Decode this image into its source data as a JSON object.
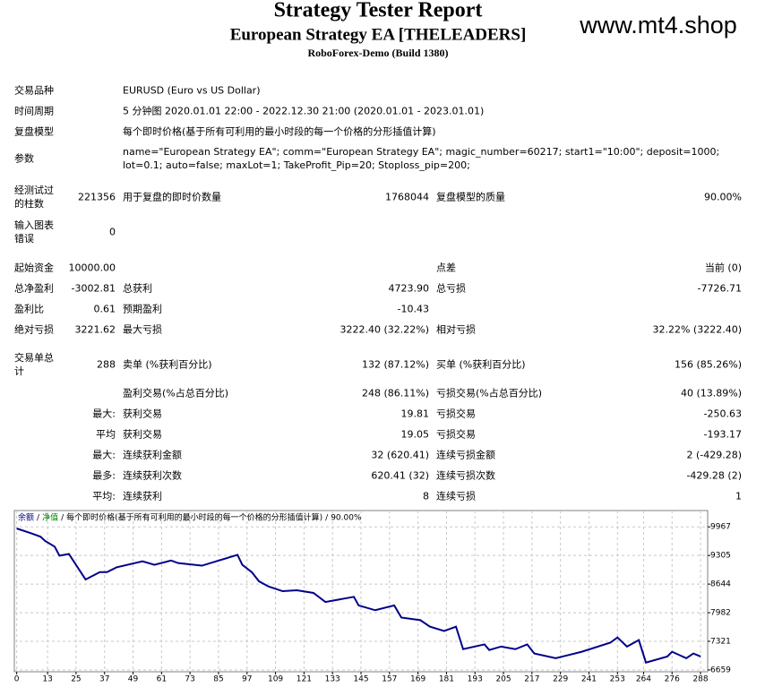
{
  "header": {
    "title": "Strategy Tester Report",
    "subtitle": "European Strategy EA [THELEADERS]",
    "server": "RoboForex-Demo (Build 1380)",
    "watermark": "www.mt4.shop"
  },
  "info_rows": [
    {
      "label": "交易品种",
      "value": "EURUSD (Euro vs US Dollar)"
    },
    {
      "label": "时间周期",
      "value": "5 分钟图 2020.01.01 22:00 - 2022.12.30 21:00 (2020.01.01 - 2023.01.01)"
    },
    {
      "label": "复盘模型",
      "value": "每个即时价格(基于所有可利用的最小时段的每一个价格的分形插值计算)"
    },
    {
      "label": "参数",
      "value": "name=\"European Strategy EA\"; comm=\"European Strategy EA\"; magic_number=60217; start1=\"10:00\"; deposit=1000; lot=0.1; auto=false; maxLot=1; TakeProfit_Pip=20; Stoploss_pip=200;"
    }
  ],
  "stat_rows": [
    [
      "经测试过的柱数",
      "221356",
      "用于复盘的即时价数量",
      "1768044",
      "复盘模型的质量",
      "90.00%"
    ],
    [
      "输入图表错误",
      "0",
      null,
      null,
      null,
      null
    ],
    [
      "起始资金",
      "10000.00",
      null,
      null,
      "点差",
      "当前 (0)"
    ],
    [
      "总净盈利",
      "-3002.81",
      "总获利",
      "4723.90",
      "总亏损",
      "-7726.71"
    ],
    [
      "盈利比",
      "0.61",
      "预期盈利",
      "-10.43",
      null,
      null
    ],
    [
      "绝对亏损",
      "3221.62",
      "最大亏损",
      "3222.40 (32.22%)",
      "相对亏损",
      "32.22% (3222.40)"
    ],
    [
      "交易单总计",
      "288",
      "卖单 (%获利百分比)",
      "132 (87.12%)",
      "买单 (%获利百分比)",
      "156 (85.26%)"
    ],
    [
      null,
      null,
      "盈利交易(%占总百分比)",
      "248 (86.11%)",
      "亏损交易(%占总百分比)",
      "40 (13.89%)"
    ],
    [
      null,
      "最大:",
      "获利交易",
      "19.81",
      "亏损交易",
      "-250.63"
    ],
    [
      null,
      "平均",
      "获利交易",
      "19.05",
      "亏损交易",
      "-193.17"
    ],
    [
      null,
      "最大:",
      "连续获利金额",
      "32 (620.41)",
      "连续亏损金额",
      "2 (-429.28)"
    ],
    [
      null,
      "最多:",
      "连续获利次数",
      "620.41 (32)",
      "连续亏损次数",
      "-429.28 (2)"
    ],
    [
      null,
      "平均:",
      "连续获利",
      "8",
      "连续亏损",
      "1"
    ]
  ],
  "chart_data": {
    "type": "line",
    "equity_name": "净值",
    "equity_color": "#008000",
    "separator": "/",
    "model": "每个即时价格(基于所有可利用的最小时段的每一个价格的分形插值计算)",
    "quality": "90.00%",
    "x": [
      0,
      6,
      10,
      12,
      16,
      18,
      22,
      24,
      29,
      35,
      38,
      42,
      53,
      58,
      65,
      68,
      78,
      84,
      93,
      95,
      99,
      102,
      106,
      112,
      118,
      125,
      130,
      142,
      144,
      151,
      159,
      162,
      170,
      174,
      180,
      185,
      188,
      197,
      199,
      204,
      210,
      215,
      218,
      227,
      238,
      250,
      253,
      257,
      262,
      265,
      274,
      276,
      282,
      285,
      288
    ],
    "series": [
      {
        "name": "余额",
        "color": "#00008b",
        "values": [
          9930,
          9820,
          9740,
          9640,
          9510,
          9300,
          9340,
          9170,
          8750,
          8920,
          8920,
          9030,
          9170,
          9090,
          9190,
          9130,
          9070,
          9170,
          9320,
          9090,
          8920,
          8710,
          8590,
          8480,
          8500,
          8440,
          8230,
          8350,
          8150,
          8040,
          8150,
          7870,
          7810,
          7660,
          7560,
          7660,
          7140,
          7250,
          7120,
          7200,
          7140,
          7250,
          7040,
          6930,
          7080,
          7290,
          7410,
          7200,
          7350,
          6830,
          6970,
          7080,
          6930,
          7040,
          6970
        ]
      }
    ],
    "xlim": [
      -1,
      291
    ],
    "ylim": [
      6617,
      10344
    ],
    "xticks": [
      0,
      13,
      25,
      37,
      49,
      61,
      73,
      85,
      97,
      109,
      121,
      133,
      145,
      157,
      169,
      181,
      193,
      205,
      217,
      229,
      241,
      253,
      264,
      276,
      288
    ],
    "yticks": [
      6659,
      7321,
      7982,
      8644,
      9305,
      9967
    ],
    "grid": true
  }
}
